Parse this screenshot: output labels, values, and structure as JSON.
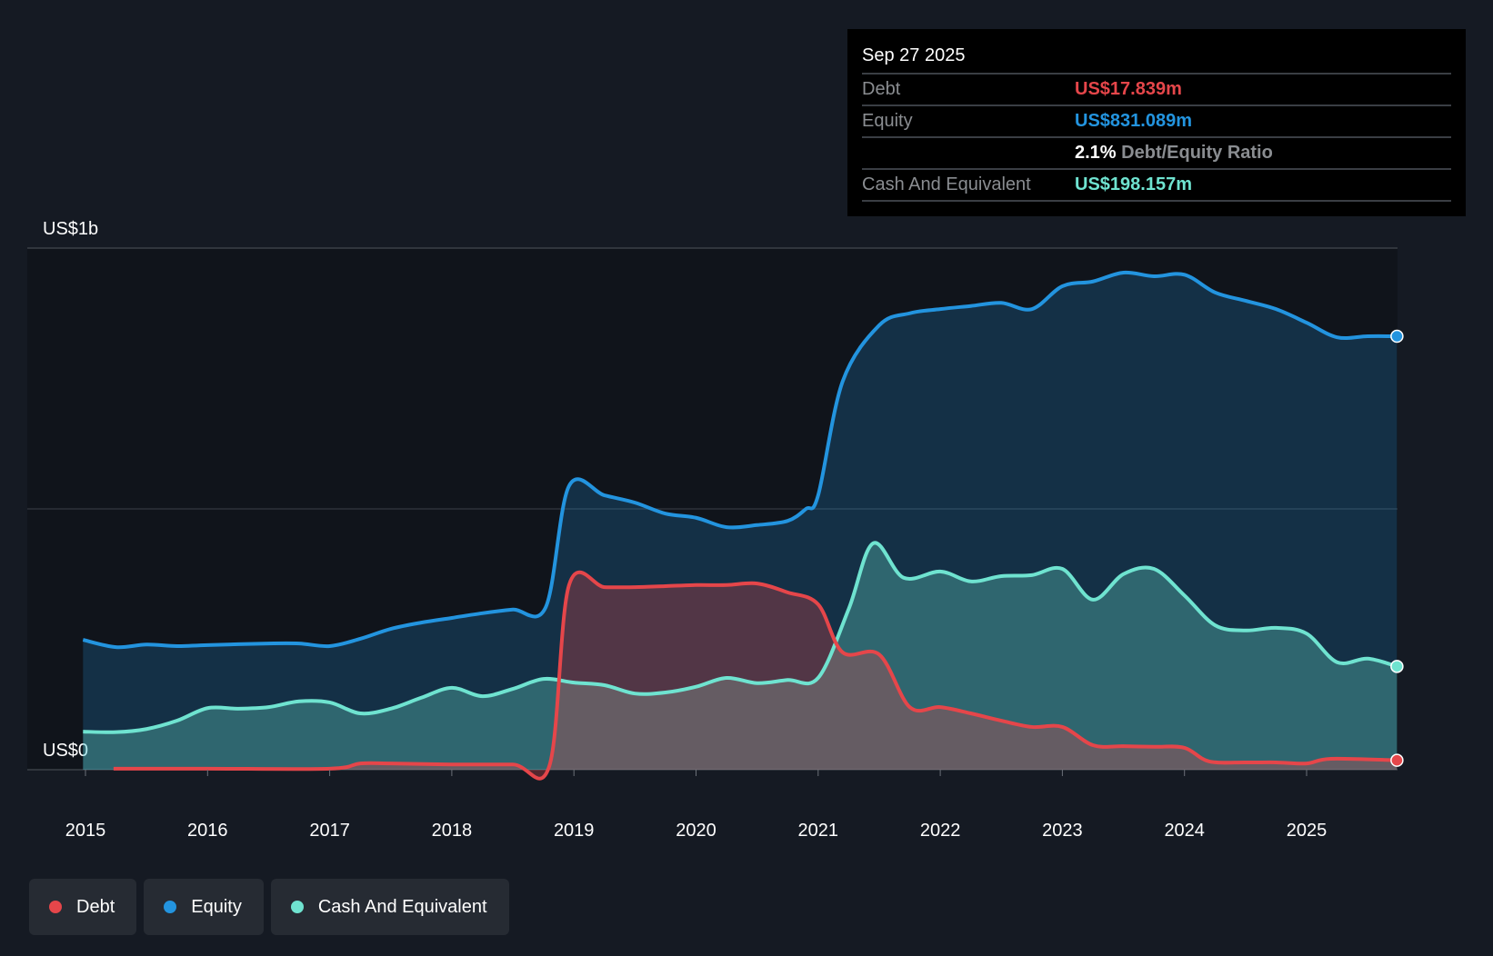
{
  "colors": {
    "debt": "#e5464a",
    "equity": "#2394df",
    "cash": "#6fe3d0",
    "background": "#151a23"
  },
  "tooltip": {
    "date": "Sep 27 2025",
    "debt_label": "Debt",
    "debt_value": "US$17.839m",
    "equity_label": "Equity",
    "equity_value": "US$831.089m",
    "ratio_value": "2.1%",
    "ratio_label": "Debt/Equity Ratio",
    "cash_label": "Cash And Equivalent",
    "cash_value": "US$198.157m"
  },
  "legend": [
    {
      "label": "Debt",
      "key": "debt"
    },
    {
      "label": "Equity",
      "key": "equity"
    },
    {
      "label": "Cash And Equivalent",
      "key": "cash"
    }
  ],
  "chart_data": {
    "type": "area",
    "ylabel_top": "US$1b",
    "ylabel_bottom": "US$0",
    "ylim": [
      0,
      1000
    ],
    "units": "US$m",
    "xlim": [
      2014.98,
      2025.74
    ],
    "x_ticks": [
      "2015",
      "2016",
      "2017",
      "2018",
      "2019",
      "2020",
      "2021",
      "2022",
      "2023",
      "2024",
      "2025"
    ],
    "grid": true,
    "series": [
      {
        "name": "Equity",
        "key": "equity",
        "points": [
          [
            2014.98,
            249
          ],
          [
            2015.25,
            235
          ],
          [
            2015.5,
            240
          ],
          [
            2015.75,
            237
          ],
          [
            2016,
            239
          ],
          [
            2016.5,
            242
          ],
          [
            2016.75,
            242
          ],
          [
            2017,
            237
          ],
          [
            2017.25,
            251
          ],
          [
            2017.5,
            270
          ],
          [
            2017.75,
            282
          ],
          [
            2018,
            291
          ],
          [
            2018.25,
            300
          ],
          [
            2018.5,
            307
          ],
          [
            2018.77,
            312
          ],
          [
            2018.96,
            544
          ],
          [
            2019.25,
            526
          ],
          [
            2019.5,
            512
          ],
          [
            2019.75,
            491
          ],
          [
            2020,
            483
          ],
          [
            2020.25,
            465
          ],
          [
            2020.5,
            469
          ],
          [
            2020.75,
            477
          ],
          [
            2020.9,
            500
          ],
          [
            2021,
            526
          ],
          [
            2021.2,
            744
          ],
          [
            2021.5,
            852
          ],
          [
            2021.75,
            875
          ],
          [
            2022,
            883
          ],
          [
            2022.25,
            889
          ],
          [
            2022.5,
            895
          ],
          [
            2022.75,
            883
          ],
          [
            2023,
            927
          ],
          [
            2023.25,
            936
          ],
          [
            2023.5,
            953
          ],
          [
            2023.75,
            946
          ],
          [
            2024,
            949
          ],
          [
            2024.25,
            915
          ],
          [
            2024.5,
            899
          ],
          [
            2024.75,
            883
          ],
          [
            2025,
            857
          ],
          [
            2025.25,
            829
          ],
          [
            2025.5,
            831
          ],
          [
            2025.74,
            831
          ]
        ]
      },
      {
        "name": "Cash And Equivalent",
        "key": "cash",
        "points": [
          [
            2014.98,
            73
          ],
          [
            2015.25,
            72
          ],
          [
            2015.5,
            78
          ],
          [
            2015.75,
            94
          ],
          [
            2016,
            118
          ],
          [
            2016.25,
            117
          ],
          [
            2016.5,
            120
          ],
          [
            2016.75,
            131
          ],
          [
            2017,
            129
          ],
          [
            2017.25,
            108
          ],
          [
            2017.5,
            117
          ],
          [
            2017.75,
            138
          ],
          [
            2018,
            157
          ],
          [
            2018.25,
            141
          ],
          [
            2018.5,
            155
          ],
          [
            2018.75,
            174
          ],
          [
            2019,
            167
          ],
          [
            2019.25,
            162
          ],
          [
            2019.5,
            146
          ],
          [
            2019.75,
            148
          ],
          [
            2020,
            159
          ],
          [
            2020.25,
            176
          ],
          [
            2020.5,
            166
          ],
          [
            2020.75,
            172
          ],
          [
            2021,
            176
          ],
          [
            2021.25,
            308
          ],
          [
            2021.45,
            434
          ],
          [
            2021.7,
            368
          ],
          [
            2022,
            380
          ],
          [
            2022.25,
            361
          ],
          [
            2022.5,
            371
          ],
          [
            2022.75,
            373
          ],
          [
            2023,
            385
          ],
          [
            2023.25,
            326
          ],
          [
            2023.5,
            375
          ],
          [
            2023.75,
            385
          ],
          [
            2024,
            334
          ],
          [
            2024.25,
            277
          ],
          [
            2024.5,
            267
          ],
          [
            2024.75,
            272
          ],
          [
            2025,
            261
          ],
          [
            2025.25,
            206
          ],
          [
            2025.5,
            213
          ],
          [
            2025.74,
            198
          ]
        ]
      },
      {
        "name": "Debt",
        "key": "debt",
        "points": [
          [
            2015.23,
            2
          ],
          [
            2016,
            2
          ],
          [
            2017,
            2
          ],
          [
            2017.25,
            12
          ],
          [
            2017.5,
            12
          ],
          [
            2018,
            10
          ],
          [
            2018.5,
            10
          ],
          [
            2018.8,
            8
          ],
          [
            2018.96,
            354
          ],
          [
            2019.25,
            350
          ],
          [
            2019.5,
            350
          ],
          [
            2019.75,
            352
          ],
          [
            2020,
            354
          ],
          [
            2020.25,
            354
          ],
          [
            2020.5,
            357
          ],
          [
            2020.75,
            340
          ],
          [
            2021,
            317
          ],
          [
            2021.2,
            225
          ],
          [
            2021.5,
            221
          ],
          [
            2021.75,
            120
          ],
          [
            2022,
            120
          ],
          [
            2022.25,
            108
          ],
          [
            2022.5,
            94
          ],
          [
            2022.75,
            82
          ],
          [
            2023,
            82
          ],
          [
            2023.25,
            47
          ],
          [
            2023.5,
            45
          ],
          [
            2023.75,
            44
          ],
          [
            2024,
            42
          ],
          [
            2024.2,
            16
          ],
          [
            2024.5,
            14
          ],
          [
            2024.75,
            14
          ],
          [
            2025,
            12
          ],
          [
            2025.2,
            21
          ],
          [
            2025.74,
            18
          ]
        ]
      }
    ]
  }
}
